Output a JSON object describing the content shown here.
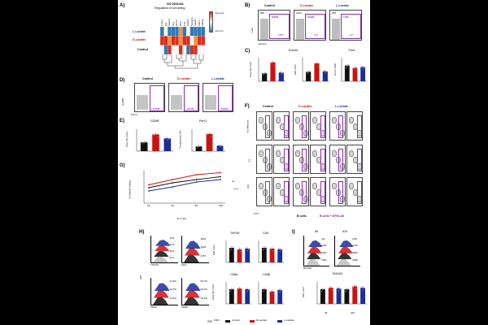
{
  "panel_A": {
    "label": "A)",
    "go_id": "GO:0031341",
    "go_term": "Regulation of cell killing",
    "row_labels": [
      "L-Lactate",
      "D-Lactate",
      "Control"
    ],
    "col_labels": [
      "Crtam",
      "Hlx",
      "Havcr2",
      "Ifng",
      "Gzmb",
      "Il2rb",
      "Prf1",
      "Il12rb2",
      "Sema7a",
      "Slamf1",
      "Il18r1",
      "Il18rap"
    ],
    "scale_top": "row max",
    "scale_bottom": "row min",
    "heatmap_colors": {
      "high": "#d7301f",
      "mid": "#f7f7f7",
      "low": "#2c7bb6",
      "orange": "#fc8d3c"
    }
  },
  "panel_B": {
    "label": "B)",
    "conditions": [
      "Control",
      "D-Lactate",
      "L-Lactate"
    ],
    "top_left": [
      "828",
      "1004",
      "905"
    ],
    "gate_percent": [
      "8.66%",
      "16.8%",
      "7.6%"
    ],
    "gate_count": [
      "1556",
      "175",
      "127"
    ],
    "y_axis": "T-bet",
    "x_axis": "Eomes"
  },
  "panel_C": {
    "label": "C)",
    "eomes_title": "Eomes",
    "tbet_title": "T-bet",
    "y1": "Freq (%) norm",
    "y2": "MFI norm",
    "y3": "Norm. GMI"
  },
  "panel_D": {
    "label": "D)",
    "conditions": [
      "Control",
      "D-Lactate",
      "L-Lactate"
    ],
    "gate_percent": [
      "6.72%",
      "21.5%",
      "6.02%"
    ],
    "y_axis": "GZMB",
    "x_axis": "Perf-1"
  },
  "panel_E": {
    "label": "E)",
    "title1": "GZMB",
    "title2": "Perf-1",
    "y1": "Freq (%) norm",
    "y2": "Frequencies (%)"
  },
  "panel_F": {
    "label": "F)",
    "conditions": [
      "Control",
      "D-Lactate",
      "L-Lactate"
    ],
    "rows": [
      "No effectors",
      "2X",
      "16X"
    ],
    "x_axis": "CTV",
    "footer_b": "B cells",
    "footer_gp": "B cells + GP61-80"
  },
  "panel_G": {
    "label": "G)",
    "y_axis": "% Specific killing",
    "x_axis": "E:T ratio",
    "x_ticks": [
      "2X",
      "4X",
      "8X",
      "16X"
    ],
    "sig1": "ns",
    "sig2": "*****"
  },
  "panel_H": {
    "label": "H)",
    "left_axis": "d10",
    "hist1": {
      "label": "ThPOK",
      "values": [
        "18.6",
        "17.5",
        "29.6",
        "52.2"
      ]
    },
    "hist2": {
      "label": "CD4",
      "values": [
        "1842",
        "1962",
        "1767"
      ]
    },
    "hist3": {
      "label": "CD8α",
      "values": [
        "12.6%",
        "12.0%",
        "13.4%"
      ]
    },
    "hist4": {
      "label": "CD8β",
      "values": [
        "63.7%",
        "20.2%",
        "15.4%"
      ]
    },
    "bar_titles": [
      "ThPOK",
      "CD4",
      "CD8α",
      "CD8β"
    ],
    "bar_ylabels": [
      "MFI norm",
      "Freq (%) norm"
    ]
  },
  "panel_I": {
    "label": "I)",
    "col_labels": [
      "d5",
      "d10"
    ],
    "hist1_values": [
      "111",
      "1306",
      "1023",
      "1621"
    ],
    "hist2_values": [
      "2.85",
      "3146",
      "3062",
      "3285"
    ],
    "hist_label": "RUNX3",
    "bar_title": "RUNX3",
    "bar_ylabel": "MFI norm",
    "bar_x": [
      "d5",
      "d10"
    ]
  },
  "legend": {
    "items": [
      "FMO",
      "Control",
      "D-Lactate",
      "L-Lactate"
    ],
    "colors": [
      "#bdbdbd",
      "#111111",
      "#cc1111",
      "#1a2d9a"
    ]
  },
  "chart_data": [
    {
      "type": "bar",
      "panel": "C-Eomes-Freq",
      "categories": [
        "Control",
        "D-Lactate",
        "L-Lactate"
      ],
      "values": [
        1.0,
        2.4,
        1.1
      ],
      "ylabel": "Freq (%) norm"
    },
    {
      "type": "bar",
      "panel": "C-Eomes-MFI",
      "categories": [
        "Control",
        "D-Lactate",
        "L-Lactate"
      ],
      "values": [
        1.0,
        1.9,
        1.05
      ],
      "ylabel": "MFI norm"
    },
    {
      "type": "bar",
      "panel": "C-Tbet",
      "categories": [
        "Control",
        "D-Lactate",
        "L-Lactate"
      ],
      "values": [
        1.0,
        0.85,
        0.9
      ],
      "ylabel": "Norm. GMI"
    },
    {
      "type": "bar",
      "panel": "E-GZMB",
      "categories": [
        "Control",
        "D-Lactate",
        "L-Lactate"
      ],
      "values": [
        1.0,
        1.9,
        1.45
      ],
      "ylabel": "Freq (%) norm"
    },
    {
      "type": "bar",
      "panel": "E-Perf1",
      "categories": [
        "Control",
        "D-Lactate",
        "L-Lactate"
      ],
      "values": [
        3.0,
        11.0,
        3.5
      ],
      "ylabel": "Frequencies (%)"
    },
    {
      "type": "line",
      "panel": "G",
      "x": [
        "2X",
        "4X",
        "8X",
        "16X"
      ],
      "series": [
        {
          "name": "Control",
          "values": [
            38,
            50,
            58,
            65
          ]
        },
        {
          "name": "D-Lactate",
          "values": [
            45,
            58,
            70,
            75
          ]
        },
        {
          "name": "L-Lactate",
          "values": [
            30,
            40,
            52,
            58
          ]
        }
      ],
      "ylabel": "% Specific killing",
      "xlabel": "E:T ratio"
    },
    {
      "type": "bar",
      "panel": "H-ThPOK",
      "categories": [
        "Control",
        "D-Lactate",
        "L-Lactate"
      ],
      "values": [
        1.0,
        0.9,
        0.95
      ]
    },
    {
      "type": "bar",
      "panel": "H-CD4",
      "categories": [
        "Control",
        "D-Lactate",
        "L-Lactate"
      ],
      "values": [
        1.0,
        0.95,
        0.9
      ]
    },
    {
      "type": "bar",
      "panel": "H-CD8a",
      "categories": [
        "Control",
        "D-Lactate",
        "L-Lactate"
      ],
      "values": [
        1.0,
        1.05,
        1.0
      ]
    },
    {
      "type": "bar",
      "panel": "H-CD8b",
      "categories": [
        "Control",
        "D-Lactate",
        "L-Lactate"
      ],
      "values": [
        1.0,
        0.85,
        0.95
      ]
    },
    {
      "type": "bar",
      "panel": "I-RUNX3",
      "categories": [
        "d5-Control",
        "d5-D-Lactate",
        "d5-L-Lactate",
        "d10-Control",
        "d10-D-Lactate",
        "d10-L-Lactate"
      ],
      "values": [
        1.0,
        1.1,
        1.05,
        1.0,
        1.2,
        1.1
      ],
      "ylabel": "MFI norm"
    }
  ]
}
